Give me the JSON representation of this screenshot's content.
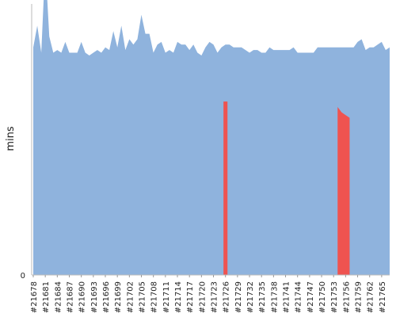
{
  "chart_data": {
    "type": "area",
    "ylabel": "mins",
    "y_tick_labels": [
      "0"
    ],
    "x_tick_labels": [
      "#21678",
      "#21681",
      "#21684",
      "#21687",
      "#21690",
      "#21693",
      "#21696",
      "#21699",
      "#21702",
      "#21705",
      "#21708",
      "#21711",
      "#21714",
      "#21717",
      "#21720",
      "#21723",
      "#21726",
      "#21729",
      "#21732",
      "#21735",
      "#21738",
      "#21741",
      "#21744",
      "#21747",
      "#21750",
      "#21753",
      "#21756",
      "#21759",
      "#21762",
      "#21765"
    ],
    "x_start": 21678,
    "x_end": 21767,
    "ylim": [
      0,
      100
    ],
    "series": [
      {
        "color": "#8fb3dd",
        "values": [
          84,
          92,
          82,
          115,
          88,
          82,
          83,
          82,
          86,
          82,
          82,
          82,
          86,
          82,
          81,
          82,
          83,
          82,
          84,
          83,
          90,
          84,
          92,
          83,
          87,
          85,
          87,
          96,
          89,
          89,
          82,
          85,
          86,
          82,
          83,
          82,
          86,
          85,
          85,
          83,
          85,
          82,
          81,
          84,
          86,
          85,
          82,
          84,
          85,
          85,
          84,
          84,
          84,
          83,
          82,
          83,
          83,
          82,
          82,
          84,
          83,
          83,
          83,
          83,
          83,
          84,
          82,
          82,
          82,
          82,
          82,
          84,
          84,
          84,
          84,
          84,
          84,
          84,
          84,
          84,
          84,
          86,
          87,
          83,
          84,
          84,
          85,
          86,
          83,
          84
        ]
      },
      {
        "color": "#ef5350",
        "values": [
          null,
          null,
          null,
          null,
          null,
          null,
          null,
          null,
          null,
          null,
          null,
          null,
          null,
          null,
          null,
          null,
          null,
          null,
          null,
          null,
          null,
          null,
          null,
          null,
          null,
          null,
          null,
          null,
          null,
          null,
          null,
          null,
          null,
          null,
          null,
          null,
          null,
          null,
          null,
          null,
          null,
          null,
          null,
          null,
          null,
          null,
          null,
          null,
          64,
          null,
          null,
          null,
          null,
          null,
          null,
          null,
          null,
          null,
          null,
          null,
          null,
          null,
          null,
          null,
          null,
          null,
          null,
          null,
          null,
          null,
          null,
          null,
          null,
          null,
          null,
          null,
          null,
          null,
          null,
          null,
          null,
          null,
          null,
          null,
          null,
          null,
          null,
          null,
          null,
          null
        ]
      },
      {
        "color": "#ef5350",
        "values": [
          null,
          null,
          null,
          null,
          null,
          null,
          null,
          null,
          null,
          null,
          null,
          null,
          null,
          null,
          null,
          null,
          null,
          null,
          null,
          null,
          null,
          null,
          null,
          null,
          null,
          null,
          null,
          null,
          null,
          null,
          null,
          null,
          null,
          null,
          null,
          null,
          null,
          null,
          null,
          null,
          null,
          null,
          null,
          null,
          null,
          null,
          null,
          null,
          null,
          null,
          null,
          null,
          null,
          null,
          null,
          null,
          null,
          null,
          null,
          null,
          null,
          null,
          null,
          null,
          null,
          null,
          null,
          null,
          null,
          null,
          null,
          null,
          null,
          null,
          null,
          null,
          62,
          60,
          59,
          58,
          null,
          null,
          null,
          null,
          null,
          null,
          null,
          null,
          null,
          null
        ]
      }
    ],
    "grid": false,
    "legend": "none"
  }
}
